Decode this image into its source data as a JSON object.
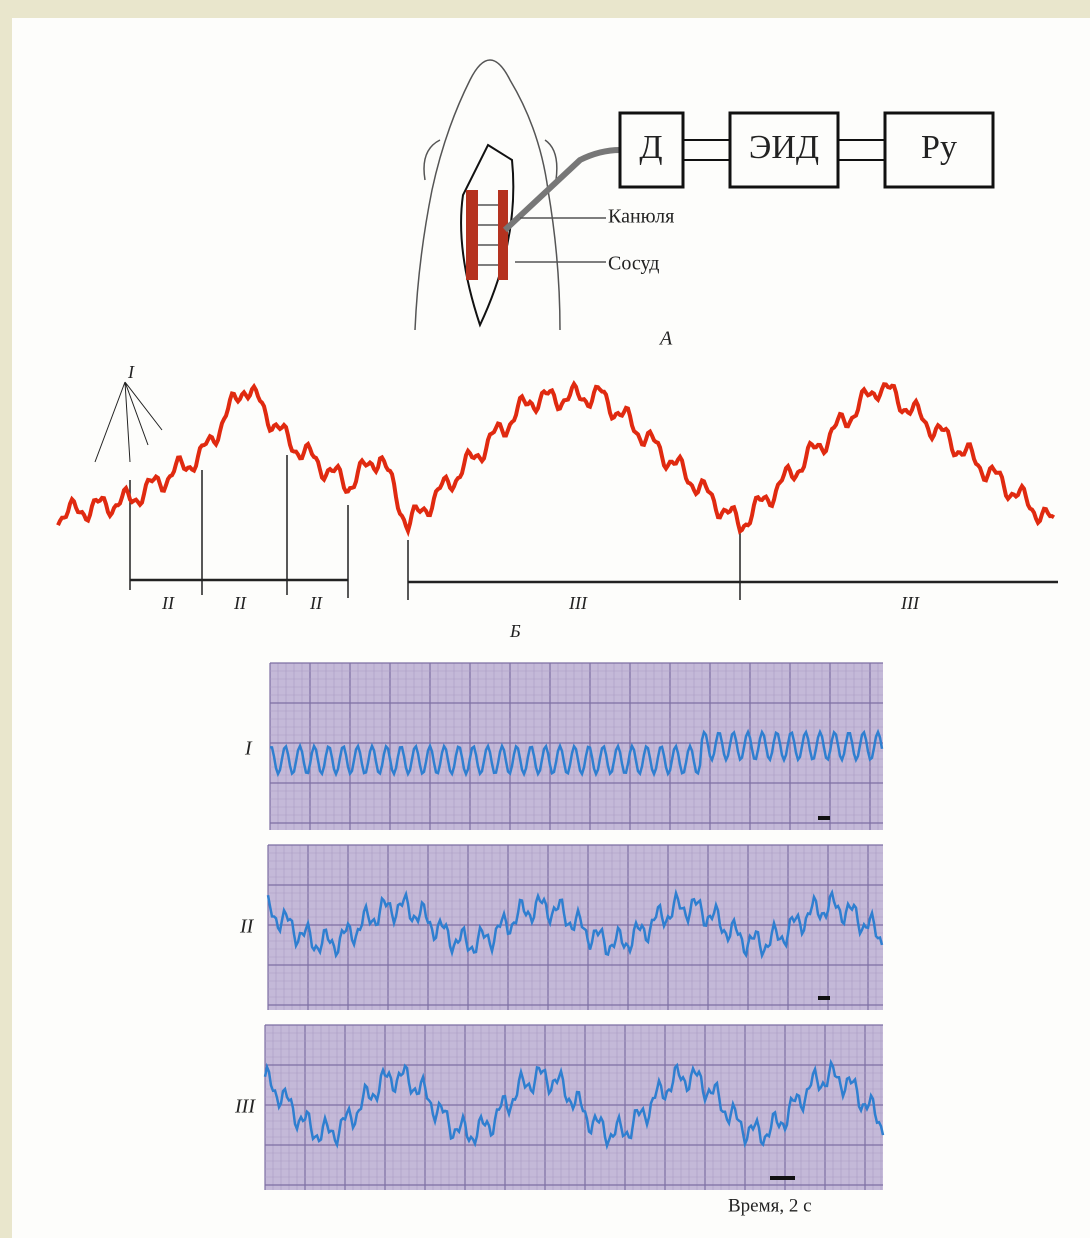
{
  "panel_a": {
    "label": "А",
    "blocks": [
      "Д",
      "ЭИД",
      "Ру"
    ],
    "callouts": [
      "Канюля",
      "Сосуд"
    ]
  },
  "panel_b": {
    "label": "Б",
    "wave_marker": "I",
    "segments": [
      "II",
      "II",
      "II",
      "III",
      "III"
    ]
  },
  "panel_c": {
    "traces": [
      "I",
      "II",
      "III"
    ],
    "time_scale": "Время, 2 с"
  }
}
